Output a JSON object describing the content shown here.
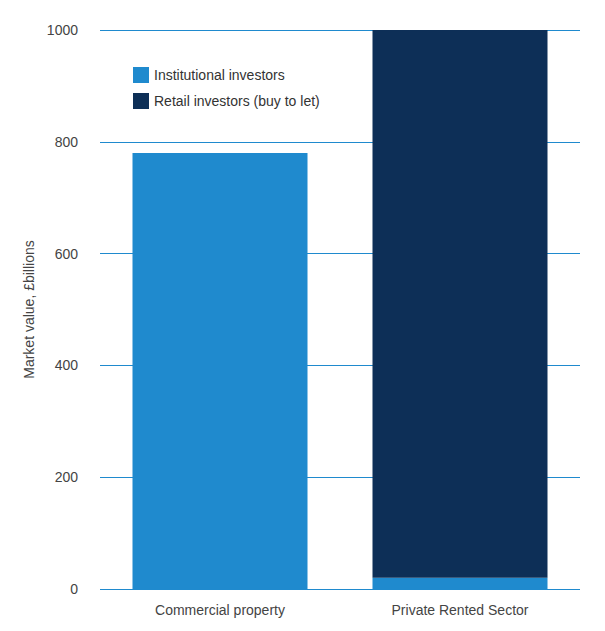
{
  "chart_data": {
    "type": "bar",
    "stacked": true,
    "y_label": "Market value, £billions",
    "categories": [
      "Commercial property",
      "Private Rented Sector"
    ],
    "series": [
      {
        "name": "Institutional investors",
        "color": "#1f8ace",
        "values": [
          780,
          20
        ]
      },
      {
        "name": "Retail investors (buy to let)",
        "color": "#0d2f57",
        "values": [
          0,
          980
        ]
      }
    ],
    "ylim": [
      0,
      1000
    ],
    "yticks": [
      0,
      200,
      400,
      600,
      800,
      1000
    ],
    "grid": true,
    "legend": "upper left"
  }
}
